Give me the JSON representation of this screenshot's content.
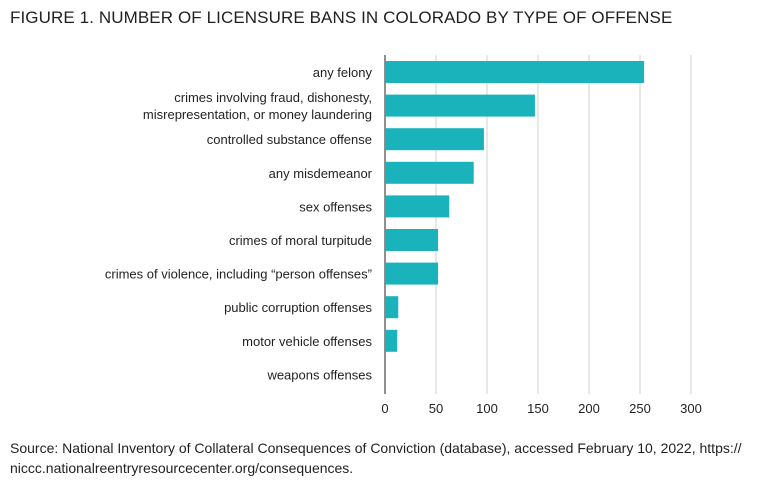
{
  "figure": {
    "title": "FIGURE 1. NUMBER OF LICENSURE BANS IN COLORADO BY TYPE OF OFFENSE",
    "source_line1": "Source:  National Inventory of Collateral Consequences of Conviction (database), accessed February 10, 2022, https://",
    "source_line2": "niccc.nationalreentryresourcecenter.org/consequences."
  },
  "chart_data": {
    "type": "bar",
    "orientation": "horizontal",
    "title": "FIGURE 1. NUMBER OF LICENSURE BANS IN COLORADO BY TYPE OF OFFENSE",
    "xlabel": "",
    "ylabel": "",
    "categories": [
      [
        "any felony"
      ],
      [
        "crimes involving fraud, dishonesty,",
        "misrepresentation, or money laundering"
      ],
      [
        "controlled substance offense"
      ],
      [
        "any misdemeanor"
      ],
      [
        "sex offenses"
      ],
      [
        "crimes of moral turpitude"
      ],
      [
        "crimes of violence, including “person offenses”"
      ],
      [
        "public corruption offenses"
      ],
      [
        "motor vehicle offenses"
      ],
      [
        "weapons offenses"
      ]
    ],
    "values": [
      254,
      147,
      97,
      87,
      63,
      52,
      52,
      13,
      12,
      0
    ],
    "xlim": [
      0,
      300
    ],
    "xticks": [
      "0",
      "50",
      "100",
      "150",
      "200",
      "250",
      "300"
    ],
    "grid": "vertical",
    "bar_color": "#1ab3bc",
    "grid_color": "#cfd0d2"
  }
}
